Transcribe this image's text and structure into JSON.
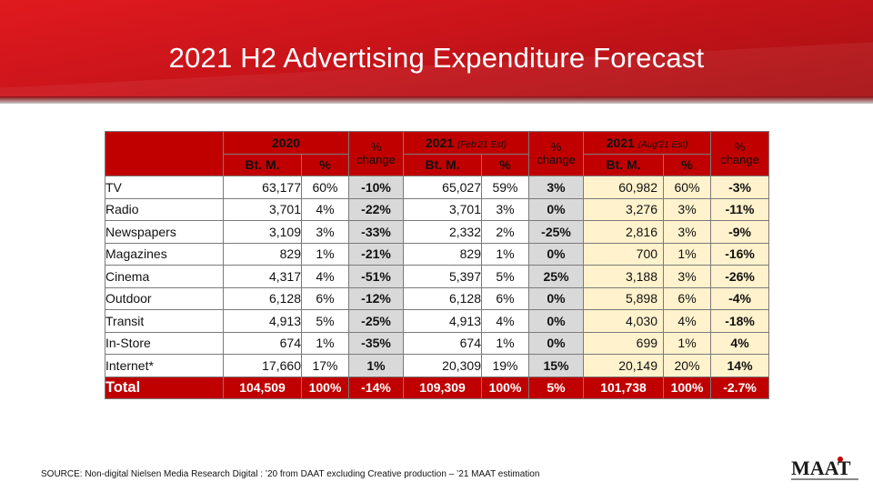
{
  "title": "2021 H2 Advertising Expenditure Forecast",
  "headers": {
    "group_2020": "2020",
    "group_feb": "2021",
    "group_feb_note": "(Feb'21 Est)",
    "group_aug": "2021",
    "group_aug_note": "(Aug'21 Est)",
    "pct_change_1": "%",
    "pct_change_2": "change",
    "btm": "Bt. M.",
    "pct": "%"
  },
  "rows": [
    {
      "cat": "TV",
      "v2020": "63,177",
      "p2020": "60%",
      "c1": "-10%",
      "vfeb": "65,027",
      "pfeb": "59%",
      "c2": "3%",
      "vaug": "60,982",
      "paug": "60%",
      "c3": "-3%"
    },
    {
      "cat": "Radio",
      "v2020": "3,701",
      "p2020": "4%",
      "c1": "-22%",
      "vfeb": "3,701",
      "pfeb": "3%",
      "c2": "0%",
      "vaug": "3,276",
      "paug": "3%",
      "c3": "-11%"
    },
    {
      "cat": "Newspapers",
      "v2020": "3,109",
      "p2020": "3%",
      "c1": "-33%",
      "vfeb": "2,332",
      "pfeb": "2%",
      "c2": "-25%",
      "vaug": "2,816",
      "paug": "3%",
      "c3": "-9%"
    },
    {
      "cat": "Magazines",
      "v2020": "829",
      "p2020": "1%",
      "c1": "-21%",
      "vfeb": "829",
      "pfeb": "1%",
      "c2": "0%",
      "vaug": "700",
      "paug": "1%",
      "c3": "-16%"
    },
    {
      "cat": "Cinema",
      "v2020": "4,317",
      "p2020": "4%",
      "c1": "-51%",
      "vfeb": "5,397",
      "pfeb": "5%",
      "c2": "25%",
      "vaug": "3,188",
      "paug": "3%",
      "c3": "-26%"
    },
    {
      "cat": "Outdoor",
      "v2020": "6,128",
      "p2020": "6%",
      "c1": "-12%",
      "vfeb": "6,128",
      "pfeb": "6%",
      "c2": "0%",
      "vaug": "5,898",
      "paug": "6%",
      "c3": "-4%"
    },
    {
      "cat": "Transit",
      "v2020": "4,913",
      "p2020": "5%",
      "c1": "-25%",
      "vfeb": "4,913",
      "pfeb": "4%",
      "c2": "0%",
      "vaug": "4,030",
      "paug": "4%",
      "c3": "-18%"
    },
    {
      "cat": "In-Store",
      "v2020": "674",
      "p2020": "1%",
      "c1": "-35%",
      "vfeb": "674",
      "pfeb": "1%",
      "c2": "0%",
      "vaug": "699",
      "paug": "1%",
      "c3": "4%"
    },
    {
      "cat": "Internet*",
      "v2020": "17,660",
      "p2020": "17%",
      "c1": "1%",
      "vfeb": "20,309",
      "pfeb": "19%",
      "c2": "15%",
      "vaug": "20,149",
      "paug": "20%",
      "c3": "14%"
    }
  ],
  "total": {
    "cat": "Total",
    "v2020": "104,509",
    "p2020": "100%",
    "c1": "-14%",
    "vfeb": "109,309",
    "pfeb": "100%",
    "c2": "5%",
    "vaug": "101,738",
    "paug": "100%",
    "c3": "-2.7%"
  },
  "source": "SOURCE:  Non-digital  Nielsen Media Research Digital : ’20 from DAAT  excluding Creative production – ’21 MAAT  estimation",
  "logo_text": "MAAT",
  "colors": {
    "banner": "#c8141a",
    "header": "#c00000",
    "grey_col": "#d9d9d9",
    "aug_fill": "#fff2cc"
  }
}
